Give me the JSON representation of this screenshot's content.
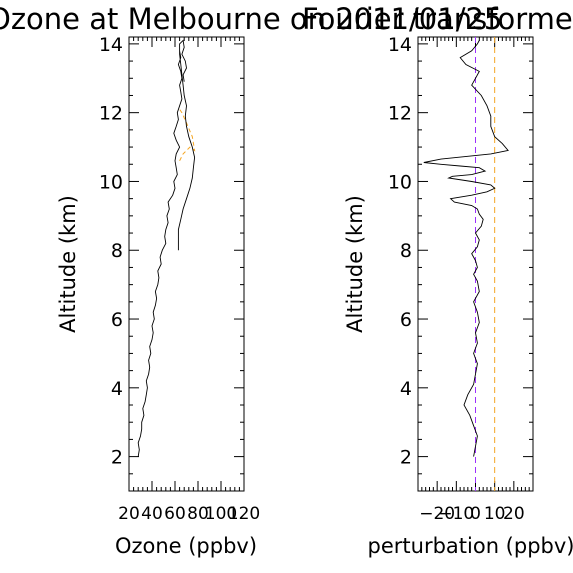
{
  "chart_data": [
    {
      "type": "line",
      "title": "Ozone at Melbourne on 2011/01/25",
      "xlabel": "Ozone (ppbv)",
      "ylabel": "Altitude (km)",
      "xlim": [
        20,
        120
      ],
      "ylim": [
        1,
        14.2
      ],
      "xticks": [
        20,
        40,
        60,
        80,
        100,
        120
      ],
      "yticks": [
        2,
        4,
        6,
        8,
        10,
        12,
        14
      ],
      "series": [
        {
          "x": [
            28,
            29,
            28,
            30,
            31,
            31,
            33,
            32,
            34,
            35,
            36,
            35,
            37,
            38,
            37,
            39,
            38,
            40,
            41,
            40,
            42,
            41,
            43,
            44,
            43,
            45,
            46,
            45,
            48,
            47,
            49,
            52,
            51,
            52,
            54,
            53,
            55,
            54,
            58,
            60,
            59,
            62,
            61,
            60,
            61,
            64,
            61,
            59,
            61,
            63,
            62,
            64,
            66,
            65,
            64,
            66,
            65,
            63,
            65,
            64,
            64,
            63,
            63,
            63,
            65,
            67,
            70,
            73,
            75,
            76,
            77,
            75,
            72,
            70,
            69,
            70,
            68,
            67,
            66,
            65,
            64,
            64,
            67,
            68,
            66,
            69,
            70,
            67,
            68
          ],
          "y": [
            2.0,
            2.2,
            2.4,
            2.6,
            2.8,
            3.0,
            3.2,
            3.4,
            3.6,
            3.8,
            4.0,
            4.2,
            4.4,
            4.6,
            4.8,
            5.0,
            5.2,
            5.4,
            5.6,
            5.8,
            6.0,
            6.2,
            6.4,
            6.6,
            6.8,
            7.0,
            7.2,
            7.4,
            7.6,
            7.8,
            8.0,
            8.2,
            8.4,
            8.6,
            8.8,
            9.0,
            9.2,
            9.4,
            9.6,
            9.8,
            10.0,
            10.2,
            10.4,
            10.6,
            10.8,
            11.0,
            11.2,
            11.4,
            11.6,
            11.8,
            12.0,
            12.2,
            12.4,
            12.6,
            12.8,
            13.0,
            13.2,
            13.4,
            13.6,
            13.8,
            14.0,
            8.0,
            8.3,
            8.6,
            8.9,
            9.2,
            9.5,
            9.8,
            10.1,
            10.4,
            10.7,
            11.0,
            11.3,
            11.6,
            11.9,
            12.2,
            12.5,
            12.8,
            13.1,
            13.4,
            13.7,
            14.0,
            14.1,
            13.9,
            13.7,
            13.5,
            13.3,
            13.1,
            12.9
          ]
        }
      ],
      "bands": [
        {
          "color": "#f5a623",
          "x": [
            64,
            67,
            73,
            77,
            75,
            70,
            66,
            64
          ],
          "y": [
            10.6,
            10.8,
            11.0,
            10.9,
            11.3,
            11.7,
            12.0,
            12.1
          ]
        }
      ]
    },
    {
      "type": "line",
      "title": "Fourier transformed",
      "xlabel": "perturbation (ppbv)",
      "ylabel": "Altitude (km)",
      "xlim": [
        -30,
        30
      ],
      "ylim": [
        1,
        14.2
      ],
      "xticks": [
        -20,
        -10,
        0,
        10,
        20
      ],
      "yticks": [
        2,
        4,
        6,
        8,
        10,
        12,
        14
      ],
      "xtick_labels": [
        "−20",
        "−10",
        "0",
        "10",
        "20"
      ],
      "vlines": [
        {
          "x": 0,
          "color": "#9b30ff"
        },
        {
          "x": 10,
          "color": "#f5a623"
        }
      ],
      "series": [
        {
          "x": [
            -1,
            0,
            1,
            -1,
            -3,
            -6,
            -4,
            -1,
            0,
            1,
            -1,
            1,
            0,
            2,
            1,
            -1,
            2,
            1,
            -1,
            1,
            0,
            -2,
            1,
            2,
            0,
            3,
            4,
            2,
            1,
            -2,
            -11,
            -13,
            -2,
            6,
            10,
            8,
            -2,
            -14,
            -12,
            -2,
            5,
            2,
            -8,
            -18,
            -27,
            -18,
            8,
            17,
            14,
            10,
            8,
            8,
            6,
            3,
            -2,
            0,
            2,
            -5,
            -8,
            -2,
            1,
            2
          ],
          "y": [
            2.0,
            2.3,
            2.6,
            2.9,
            3.2,
            3.5,
            3.8,
            4.1,
            4.4,
            4.7,
            5.0,
            5.3,
            5.6,
            5.9,
            6.2,
            6.5,
            6.8,
            7.1,
            7.3,
            7.5,
            7.7,
            7.9,
            8.1,
            8.3,
            8.5,
            8.7,
            8.9,
            9.05,
            9.2,
            9.3,
            9.4,
            9.5,
            9.6,
            9.7,
            9.8,
            9.9,
            10.0,
            10.1,
            10.15,
            10.2,
            10.3,
            10.4,
            10.45,
            10.5,
            10.55,
            10.65,
            10.8,
            10.9,
            11.1,
            11.3,
            11.6,
            11.9,
            12.2,
            12.5,
            12.8,
            13.0,
            13.2,
            13.4,
            13.6,
            13.8,
            14.0,
            14.1
          ]
        }
      ]
    }
  ]
}
